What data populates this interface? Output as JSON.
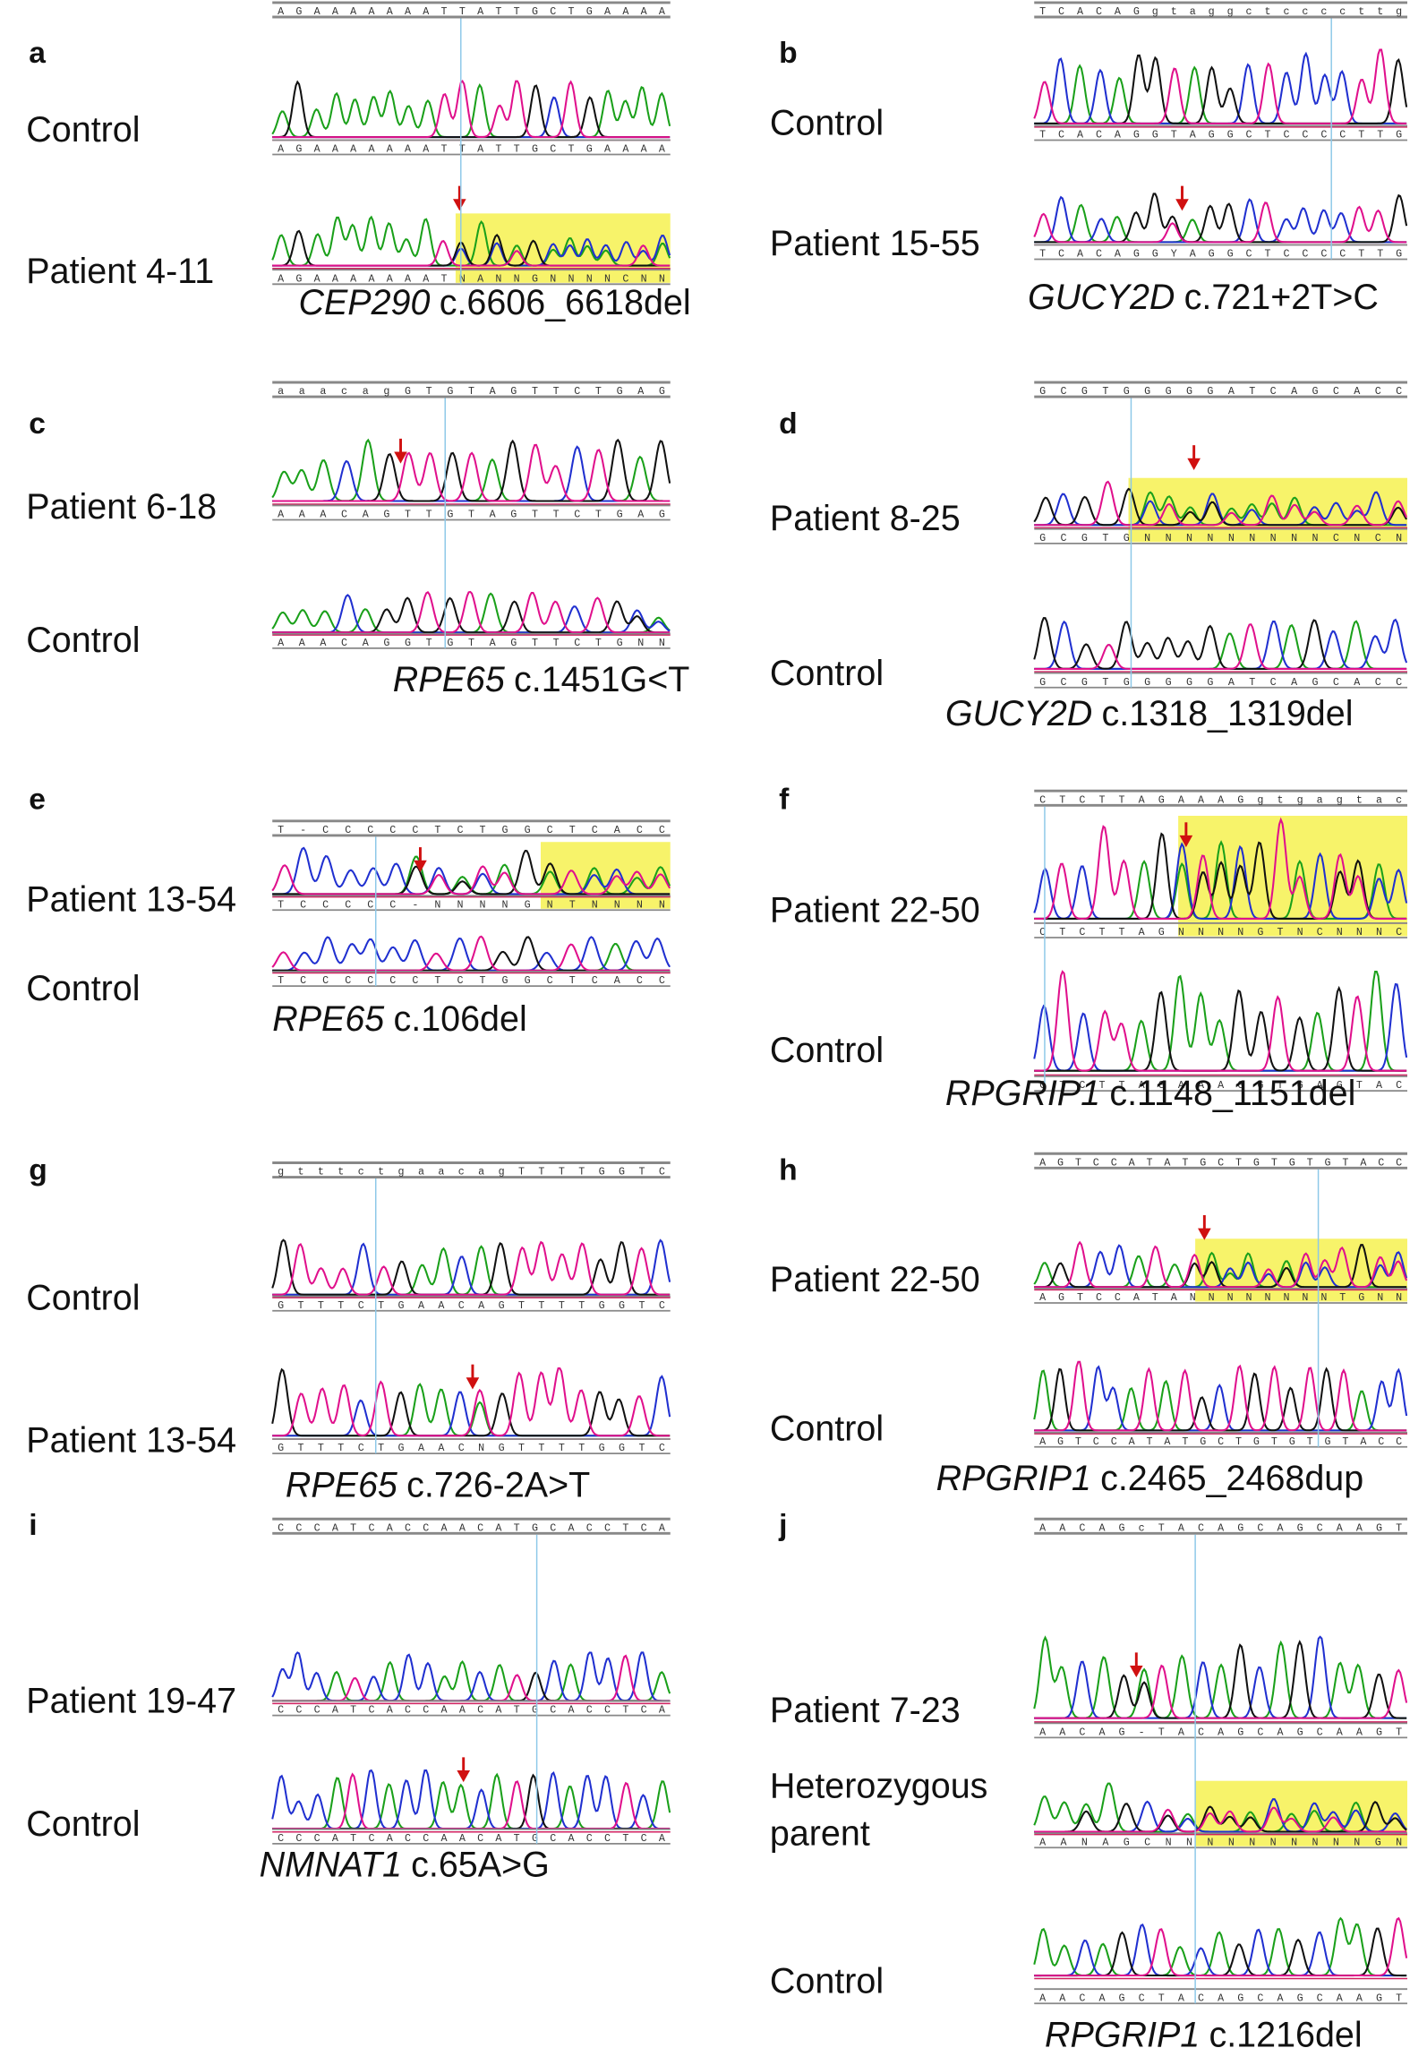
{
  "panels": [
    {
      "letter": "a",
      "reference": "AGAAAAAAATTATTGCTGAAAA",
      "gene": "CEP290",
      "variant": "c.6606_6618del",
      "rows": [
        {
          "label": "Control",
          "sequence": "AGAAAAAAATTATTGCTGAAAA"
        },
        {
          "label": "Patient 4-11",
          "sequence": "AGAAAAAAATNANNGNNNNCNN"
        }
      ]
    },
    {
      "letter": "b",
      "reference": "TCACAGgtaggctccccttg",
      "gene": "GUCY2D",
      "variant": "c.721+2T>C",
      "rows": [
        {
          "label": "Control",
          "sequence": "TCACAGGTAGGCTCCCCTTG"
        },
        {
          "label": "Patient 15-55",
          "sequence": "TCACAGGYAGGCTCCCCTTG"
        }
      ]
    },
    {
      "letter": "c",
      "reference": "aaacagGTGTAGTTCTGAG",
      "gene": "RPE65",
      "variant": "c.1451G<T",
      "rows": [
        {
          "label": "Patient 6-18",
          "sequence": "AAACAGTTGTAGTTCTGAG"
        },
        {
          "label": "Control",
          "sequence": "AAACAGGTGTAGTTCTGNN"
        }
      ]
    },
    {
      "letter": "d",
      "reference": "GCGTGGGGGATCAGCACC",
      "gene": "GUCY2D",
      "variant": "c.1318_1319del",
      "rows": [
        {
          "label": "Patient 8-25",
          "sequence": "GCGTGNNNNNNNNNCNCN"
        },
        {
          "label": "Control",
          "sequence": "GCGTGGGGGATCAGCACC"
        }
      ]
    },
    {
      "letter": "e",
      "reference": "T-CCCCCTCTGGCTCACC",
      "gene": "RPE65",
      "variant": "c.106del",
      "rows": [
        {
          "label": "Patient 13-54",
          "sequence": "TCCCCC-NNNNGNTNNNN"
        },
        {
          "label": "Control",
          "sequence": "TCCCCCCTCTGGCTCACC"
        }
      ]
    },
    {
      "letter": "f",
      "reference": "CTCTTAGAAAGgtgagtac",
      "gene": "RPGRIP1",
      "variant": "c.1148_1151del",
      "rows": [
        {
          "label": "Patient 22-50",
          "sequence": "CTCTTAGNNNNGTNCNNNC"
        },
        {
          "label": "Control",
          "sequence": "CTCTTAGAAAGGTGAGTAC"
        }
      ]
    },
    {
      "letter": "g",
      "reference": "gtttctgaacagTTTTGGTC",
      "gene": "RPE65",
      "variant": "c.726-2A>T",
      "rows": [
        {
          "label": "Control",
          "sequence": "GTTTCTGAACAGTTTTGGTC"
        },
        {
          "label": "Patient 13-54",
          "sequence": "GTTTCTGAACNGTTTTGGTC"
        }
      ]
    },
    {
      "letter": "h",
      "reference": "AGTCCATATGCTGTGTGTACC",
      "gene": "RPGRIP1",
      "variant": "c.2465_2468dup",
      "rows": [
        {
          "label": "Patient 22-50",
          "sequence": "AGTCCATANNNNNNNNTGNN"
        },
        {
          "label": "Control",
          "sequence": "AGTCCATATGCTGTGTGTACC"
        }
      ]
    },
    {
      "letter": "i",
      "reference": "CCCATCACCAACATGCACCTCA",
      "gene": "NMNAT1",
      "variant": "c.65A>G",
      "rows": [
        {
          "label": "Patient 19-47",
          "sequence": "CCCATCACCAACATGCACCTCA"
        },
        {
          "label": "Control",
          "sequence": "CCCATCACCAACATGCACCTCA"
        }
      ]
    },
    {
      "letter": "j",
      "reference": "AACAGcTACAGCAGCAAGT",
      "gene": "RPGRIP1",
      "variant": "c.1216del",
      "rows": [
        {
          "label": "Patient 7-23",
          "sequence": "AACAG-TACAGCAGCAAGT"
        },
        {
          "label": [
            "Heterozygous",
            "parent"
          ],
          "sequence": "AANAGCNNNNNNNNNNGN"
        },
        {
          "label": "Control",
          "sequence": "AACAGCTACAGCAGCAAGT"
        }
      ]
    }
  ]
}
